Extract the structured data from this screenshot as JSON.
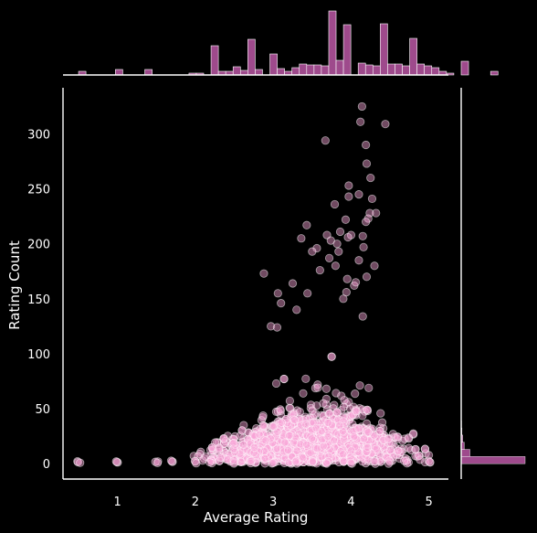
{
  "chart_data": {
    "type": "scatter",
    "kind": "jointplot",
    "title": "",
    "xlabel": "Average Rating",
    "ylabel": "Rating Count",
    "xlim": [
      0.3,
      5.25
    ],
    "ylim": [
      -14,
      342
    ],
    "x_ticks": [
      1,
      2,
      3,
      4,
      5
    ],
    "x_tick_labels": [
      "1",
      "2",
      "3",
      "4",
      "5"
    ],
    "y_ticks": [
      0,
      50,
      100,
      150,
      200,
      250,
      300
    ],
    "y_tick_labels": [
      "0",
      "50",
      "100",
      "150",
      "200",
      "250",
      "300"
    ],
    "grid": false,
    "legend": "none",
    "colors": {
      "background": "#000000",
      "axes": "#ffffff",
      "point_fill": "#f8a5d8",
      "point_edge": "#ffffff",
      "hist_fill": "#9e4a8c",
      "hist_edge": "#ffffff"
    },
    "highlighted_points": [
      {
        "x": 4.14,
        "y": 325
      },
      {
        "x": 4.12,
        "y": 311
      },
      {
        "x": 4.44,
        "y": 309
      },
      {
        "x": 4.19,
        "y": 290
      },
      {
        "x": 3.67,
        "y": 294
      },
      {
        "x": 4.2,
        "y": 273
      },
      {
        "x": 4.25,
        "y": 260
      },
      {
        "x": 3.97,
        "y": 253
      },
      {
        "x": 4.1,
        "y": 245
      },
      {
        "x": 4.27,
        "y": 241
      },
      {
        "x": 3.97,
        "y": 243
      },
      {
        "x": 3.79,
        "y": 236
      },
      {
        "x": 4.32,
        "y": 228
      },
      {
        "x": 4.24,
        "y": 228
      },
      {
        "x": 4.22,
        "y": 223
      },
      {
        "x": 3.93,
        "y": 222
      },
      {
        "x": 4.19,
        "y": 220
      },
      {
        "x": 3.43,
        "y": 217
      },
      {
        "x": 3.86,
        "y": 211
      },
      {
        "x": 3.69,
        "y": 208
      },
      {
        "x": 4.0,
        "y": 208
      },
      {
        "x": 4.15,
        "y": 207
      },
      {
        "x": 3.96,
        "y": 206
      },
      {
        "x": 3.36,
        "y": 205
      },
      {
        "x": 3.74,
        "y": 203
      },
      {
        "x": 3.82,
        "y": 200
      },
      {
        "x": 4.16,
        "y": 197
      },
      {
        "x": 3.84,
        "y": 193
      },
      {
        "x": 3.56,
        "y": 196
      },
      {
        "x": 3.5,
        "y": 193
      },
      {
        "x": 2.88,
        "y": 173
      },
      {
        "x": 3.8,
        "y": 180
      },
      {
        "x": 4.1,
        "y": 185
      },
      {
        "x": 3.72,
        "y": 187
      },
      {
        "x": 3.6,
        "y": 176
      },
      {
        "x": 4.3,
        "y": 180
      },
      {
        "x": 3.25,
        "y": 164
      },
      {
        "x": 4.2,
        "y": 170
      },
      {
        "x": 3.44,
        "y": 155
      },
      {
        "x": 3.06,
        "y": 155
      },
      {
        "x": 3.1,
        "y": 146
      },
      {
        "x": 3.3,
        "y": 140
      },
      {
        "x": 4.04,
        "y": 162
      },
      {
        "x": 3.94,
        "y": 156
      },
      {
        "x": 2.97,
        "y": 125
      },
      {
        "x": 3.05,
        "y": 124
      },
      {
        "x": 3.95,
        "y": 168
      },
      {
        "x": 3.9,
        "y": 150
      },
      {
        "x": 4.06,
        "y": 165
      },
      {
        "x": 4.15,
        "y": 134
      }
    ],
    "x_histogram": {
      "bin_edges_start": 0.5,
      "bin_width": 0.0945,
      "counts": [
        4,
        0,
        0,
        0,
        0,
        6,
        0,
        0,
        0,
        6,
        0,
        0,
        0,
        0,
        0,
        2,
        2,
        0,
        32,
        4,
        4,
        9,
        5,
        39,
        6,
        0,
        23,
        7,
        4,
        8,
        12,
        11,
        11,
        10,
        70,
        16,
        55,
        0,
        13,
        11,
        10,
        56,
        12,
        12,
        10,
        40,
        12,
        10,
        8,
        4,
        2,
        0,
        15,
        0,
        0,
        0,
        4
      ]
    },
    "y_histogram": {
      "bin_edges_start": 0,
      "bin_width": 6.5,
      "counts": [
        330,
        45,
        16,
        8,
        4,
        2,
        1
      ]
    }
  }
}
